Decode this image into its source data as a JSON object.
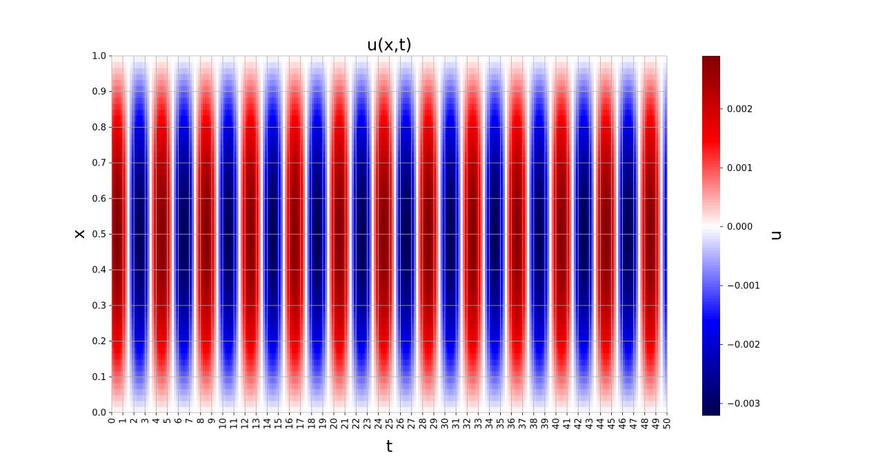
{
  "chart_data": {
    "type": "heatmap",
    "title": "u(x,t)",
    "xlabel": "t",
    "ylabel": "x",
    "colorbar_label": "u",
    "colormap": "seismic",
    "x_ticks": [
      "0",
      "1",
      "2",
      "3",
      "4",
      "5",
      "6",
      "7",
      "8",
      "9",
      "10",
      "11",
      "12",
      "13",
      "14",
      "15",
      "16",
      "17",
      "18",
      "19",
      "20",
      "21",
      "22",
      "23",
      "24",
      "25",
      "26",
      "27",
      "28",
      "29",
      "30",
      "31",
      "32",
      "33",
      "34",
      "35",
      "36",
      "37",
      "38",
      "39",
      "40",
      "41",
      "42",
      "43",
      "44",
      "45",
      "46",
      "47",
      "48",
      "49",
      "50"
    ],
    "y_ticks": [
      "0.0",
      "0.1",
      "0.2",
      "0.3",
      "0.4",
      "0.5",
      "0.6",
      "0.7",
      "0.8",
      "0.9",
      "1.0"
    ],
    "xlim": [
      0,
      50
    ],
    "ylim": [
      0,
      1
    ],
    "color_range": [
      -0.0032,
      0.0029
    ],
    "colorbar_ticks": [
      {
        "value": 0.002,
        "label": "0.002"
      },
      {
        "value": 0.001,
        "label": "0.001"
      },
      {
        "value": 0.0,
        "label": "0.000"
      },
      {
        "value": -0.001,
        "label": "−0.001"
      },
      {
        "value": -0.002,
        "label": "−0.002"
      },
      {
        "value": -0.003,
        "label": "−0.003"
      }
    ],
    "grid": true,
    "field": {
      "description_free_values": true,
      "amplitude_positive": 0.0029,
      "amplitude_negative": -0.0032,
      "oscillation_period_t": 4,
      "peak_t_first_positive": 0.5,
      "spatial_profile": "sin(pi x)"
    },
    "colors": {
      "dark_red": "#800000",
      "red": "#ff0000",
      "white": "#ffffff",
      "blue": "#0000ff",
      "dark_blue": "#00004d",
      "grid": "#b0b0b0"
    }
  }
}
